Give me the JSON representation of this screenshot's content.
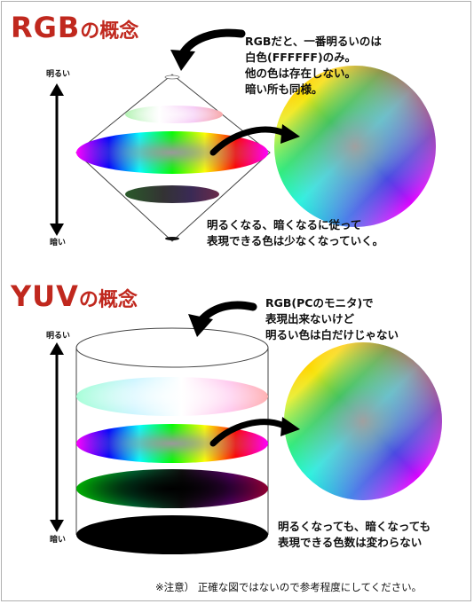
{
  "rgb_section": {
    "title_main": "RGB",
    "title_suffix": "の概念",
    "axis_top": "明るい",
    "axis_bottom": "暗い",
    "note_lines": [
      "RGBだと、一番明るいのは",
      "白色(FFFFFF)のみ。",
      "他の色は存在しない。",
      "暗い所も同様。"
    ],
    "bottom_lines": [
      "明るくなる、暗くなるに従って",
      "表現できる色は少なくなっていく。"
    ]
  },
  "yuv_section": {
    "title_main": "YUV",
    "title_suffix": "の概念",
    "axis_top": "明るい",
    "axis_bottom": "暗い",
    "note_lines": [
      "RGB(PCのモニタ)で",
      "表現出来ないけど",
      "明るい色は白だけじゃない"
    ],
    "bottom_lines": [
      "明るくなっても、暗くなっても",
      "表現できる色数は変わらない"
    ]
  },
  "footnote": "※注意） 正確な図ではないので参考程度にしてください。",
  "colors": {
    "title_red": "#c0281e",
    "arrow_black": "#000000",
    "outline_gray": "#555555"
  }
}
